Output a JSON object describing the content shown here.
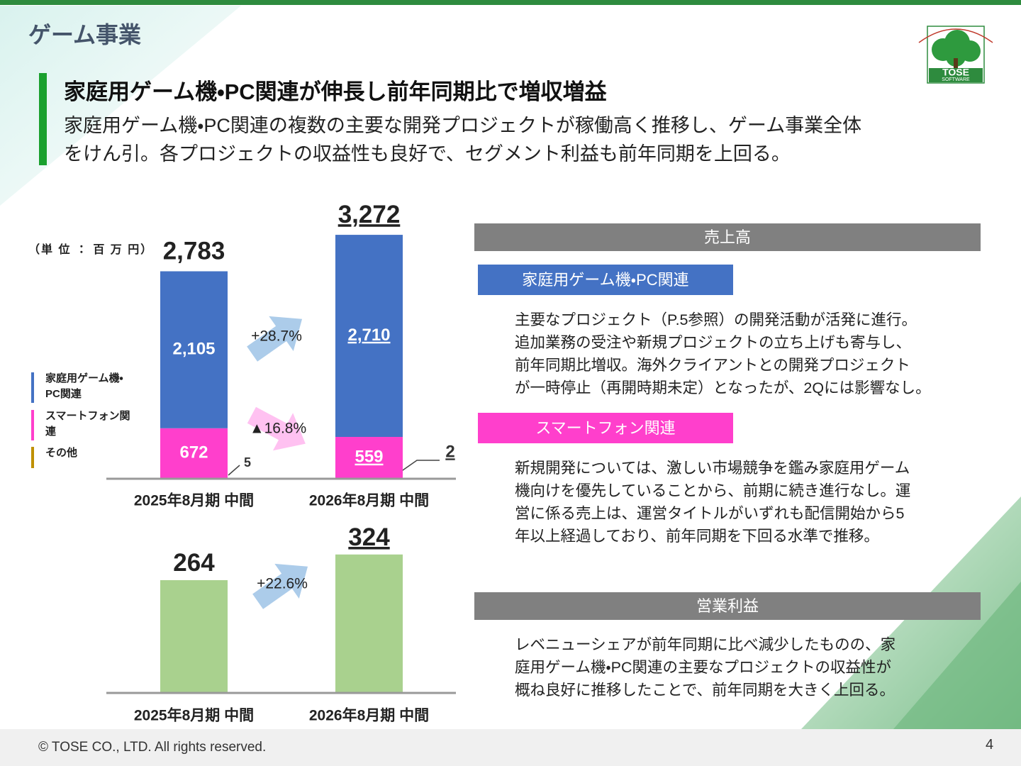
{
  "section_title": "ゲーム事業",
  "headline": "家庭用ゲーム機・PC関連が伸長し前年同期比で増収増益",
  "summary": [
    "家庭用ゲーム機・PC関連の複数の主要な開発プロジェクトが稼働高く推移し、ゲーム事業全体",
    "をけん引。各プロジェクトの収益性も良好で、セグメント利益も前年同期を上回る。"
  ],
  "logo": {
    "name": "TOSE",
    "sub": "SOFTWARE"
  },
  "chart_data": [
    {
      "type": "stacked_bar",
      "unit": "（単 位 ： 百 万 円）",
      "categories": [
        "2025年8月期 中間",
        "2026年8月期 中間"
      ],
      "series": [
        {
          "name": "家庭用ゲーム機・PC関連",
          "color": "#4472c4",
          "values": [
            2105,
            2710
          ],
          "value_labels": [
            "2,105",
            "2,710"
          ]
        },
        {
          "name": "スマートフォン関連",
          "color": "#ff3fcc",
          "values": [
            672,
            559
          ]
        },
        {
          "name": "その他",
          "color": "#bf9000",
          "values": [
            5,
            2
          ]
        }
      ],
      "totals": {
        "values": [
          2783,
          3272
        ],
        "value_labels": [
          "2,783",
          "3,272"
        ]
      },
      "annotations": [
        "+28.7%",
        "▲16.8%"
      ],
      "ylim": [
        0,
        3500
      ]
    },
    {
      "type": "bar",
      "categories": [
        "2025年8月期 中間",
        "2026年8月期 中間"
      ],
      "values": [
        264,
        324
      ],
      "color": "#a9d18e",
      "annotations": [
        "+22.6%"
      ],
      "ylim": [
        0,
        400
      ]
    }
  ],
  "sales": {
    "heading": "売上高",
    "sections": [
      {
        "title": "家庭用ゲーム機・PC関連",
        "color": "#4472c4",
        "lines": [
          "主要なプロジェクト（P.5参照）の開発活動が活発に進行。",
          "追加業務の受注や新規プロジェクトの立ち上げも寄与し、",
          "前年同期比増収。海外クライアントとの開発プロジェクト",
          "が一時停止（再開時期未定）となったが、2Qには影響なし。"
        ]
      },
      {
        "title": "スマートフォン関連",
        "color": "#ff3fcc",
        "lines": [
          "新規開発については、激しい市場競争を鑑み家庭用ゲーム",
          "機向けを優先していることから、前期に続き進行なし。運",
          "営に係る売上は、運営タイトルがいずれも配信開始から5",
          "年以上経過しており、前年同期を下回る水準で推移。"
        ]
      }
    ]
  },
  "profit": {
    "heading": "営業利益",
    "lines": [
      "レベニューシェアが前年同期に比べ減少したものの、家",
      "庭用ゲーム機・PC関連の主要なプロジェクトの収益性が",
      "概ね良好に推移したことで、前年同期を大きく上回る。"
    ]
  },
  "footer": {
    "copyright": "© TOSE CO., LTD. All rights reserved.",
    "page": 4
  }
}
